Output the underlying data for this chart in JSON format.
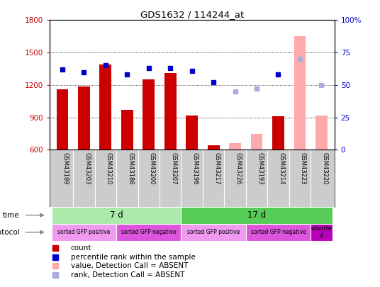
{
  "title": "GDS1632 / 114244_at",
  "samples": [
    "GSM43189",
    "GSM43203",
    "GSM43210",
    "GSM43186",
    "GSM43200",
    "GSM43207",
    "GSM43196",
    "GSM43217",
    "GSM43226",
    "GSM43193",
    "GSM43214",
    "GSM43223",
    "GSM43220"
  ],
  "count_values": [
    1160,
    1185,
    1390,
    970,
    1255,
    1310,
    920,
    645,
    null,
    null,
    910,
    null,
    920
  ],
  "count_absent": [
    null,
    null,
    null,
    null,
    null,
    null,
    null,
    null,
    665,
    750,
    null,
    1650,
    920
  ],
  "rank_values": [
    62,
    60,
    65,
    58,
    63,
    63,
    61,
    52,
    null,
    null,
    58,
    null,
    null
  ],
  "rank_absent": [
    null,
    null,
    null,
    null,
    null,
    null,
    null,
    null,
    45,
    47,
    null,
    70,
    50
  ],
  "ylim_left": [
    600,
    1800
  ],
  "ylim_right": [
    0,
    100
  ],
  "yticks_left": [
    600,
    900,
    1200,
    1500,
    1800
  ],
  "yticks_right": [
    0,
    25,
    50,
    75,
    100
  ],
  "time_groups": [
    {
      "label": "7 d",
      "start": 0,
      "end": 6,
      "color": "#aaeaaa"
    },
    {
      "label": "17 d",
      "start": 6,
      "end": 13,
      "color": "#55cc55"
    }
  ],
  "protocol_groups": [
    {
      "label": "sorted GFP positive",
      "start": 0,
      "end": 3,
      "color": "#f09af0"
    },
    {
      "label": "sorted GFP negative",
      "start": 3,
      "end": 6,
      "color": "#dd55dd"
    },
    {
      "label": "sorted GFP positive",
      "start": 6,
      "end": 9,
      "color": "#f09af0"
    },
    {
      "label": "sorted GFP negative",
      "start": 9,
      "end": 12,
      "color": "#dd55dd"
    },
    {
      "label": "unsorte\nd",
      "start": 12,
      "end": 13,
      "color": "#bb00bb"
    }
  ],
  "bar_color_present": "#cc0000",
  "bar_color_absent": "#ffaaaa",
  "rank_color_present": "#0000cc",
  "rank_color_absent": "#aaaadd",
  "bar_width": 0.55,
  "bg_color": "#ffffff",
  "left_tick_color": "#cc0000",
  "right_tick_color": "#0000cc",
  "xtick_bg_color": "#cccccc",
  "legend": [
    {
      "label": "count",
      "color": "#cc0000"
    },
    {
      "label": "percentile rank within the sample",
      "color": "#0000cc"
    },
    {
      "label": "value, Detection Call = ABSENT",
      "color": "#ffaaaa"
    },
    {
      "label": "rank, Detection Call = ABSENT",
      "color": "#aaaadd"
    }
  ]
}
